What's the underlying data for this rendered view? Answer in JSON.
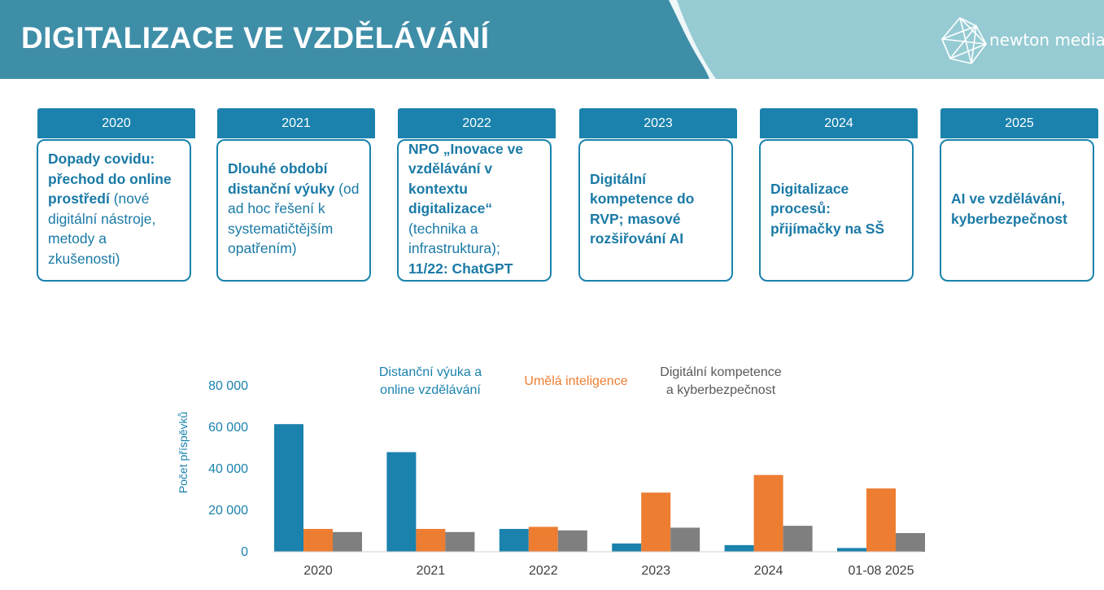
{
  "header": {
    "title": "DIGITALIZACE VE VZDĚLÁVÁNÍ",
    "logo_text": "newton media",
    "colors": {
      "dark": "#3f8ea8",
      "light": "#96cbd3"
    }
  },
  "timeline": [
    {
      "year": "2020",
      "bold": "Dopady covidu: přechod do online prostředí",
      "normal": " (nové digitální nástroje, metody a zkušenosti)",
      "tail_bold": ""
    },
    {
      "year": "2021",
      "bold": "Dlouhé období distanční výuky",
      "normal": " (od ad hoc řešení k systematičtějším opatřením)",
      "tail_bold": ""
    },
    {
      "year": "2022",
      "bold": "NPO „Inovace ve vzdělávání v kontextu digitalizace“",
      "normal": " (technika a infrastruktura); ",
      "tail_bold": "11/22: ChatGPT"
    },
    {
      "year": "2023",
      "bold": "Digitální kompetence do RVP; masové rozšiřování AI",
      "normal": "",
      "tail_bold": ""
    },
    {
      "year": "2024",
      "bold": "Digitalizace procesů: přijímačky na SŠ",
      "normal": "",
      "tail_bold": ""
    },
    {
      "year": "2025",
      "bold": "AI ve vzdělávání, kyberbezpečnost",
      "normal": "",
      "tail_bold": ""
    }
  ],
  "chart_data": {
    "type": "bar",
    "categories": [
      "2020",
      "2021",
      "2022",
      "2023",
      "2024",
      "01-08 2025"
    ],
    "series": [
      {
        "name": "Distanční výuka a online vzdělávání",
        "color": "#1a82ad",
        "values": [
          61500,
          48000,
          11000,
          4000,
          3200,
          1800
        ]
      },
      {
        "name": "Umělá inteligence",
        "color": "#ed7d31",
        "values": [
          11000,
          11000,
          12000,
          28500,
          37000,
          30500
        ]
      },
      {
        "name": "Digitální kompetence a kyberbezpečnost",
        "color": "#7f7f7f",
        "values": [
          9500,
          9500,
          10300,
          11600,
          12500,
          9000
        ]
      }
    ],
    "ylabel": "Počet příspěvků",
    "yticks": [
      "0",
      "20 000",
      "40 000",
      "60 000",
      "80 000"
    ],
    "ylim": [
      0,
      80000
    ],
    "grid": false,
    "legend_placement": "top"
  }
}
